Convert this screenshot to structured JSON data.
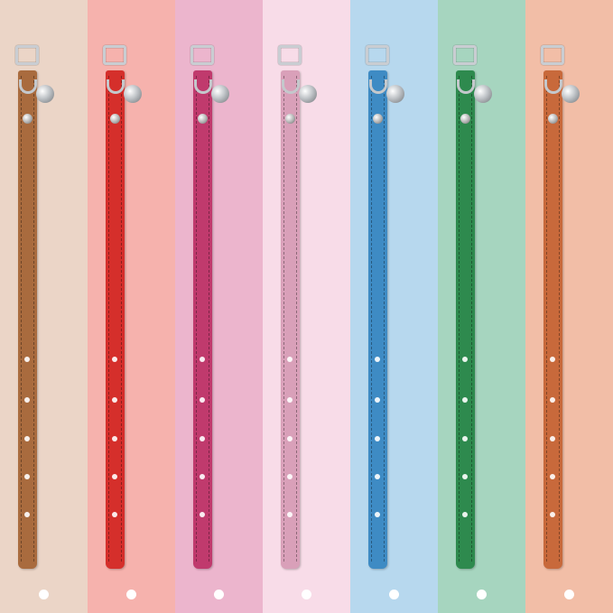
{
  "image": {
    "description_type": "product-photo",
    "panels": [
      {
        "name": "brown",
        "background": "#ebd5c7",
        "collar": "#a96b3e"
      },
      {
        "name": "red",
        "background": "#f6b2ad",
        "collar": "#d52f2b"
      },
      {
        "name": "rose",
        "background": "#ecb5cd",
        "collar": "#c03a6d"
      },
      {
        "name": "light-pink",
        "background": "#f8dce8",
        "collar": "#d9a0b9"
      },
      {
        "name": "blue",
        "background": "#b7d8ee",
        "collar": "#3e8bc4"
      },
      {
        "name": "green",
        "background": "#a6d5bf",
        "collar": "#2e8a4e"
      },
      {
        "name": "orange-brown",
        "background": "#f2bea7",
        "collar": "#c8693b"
      }
    ]
  }
}
